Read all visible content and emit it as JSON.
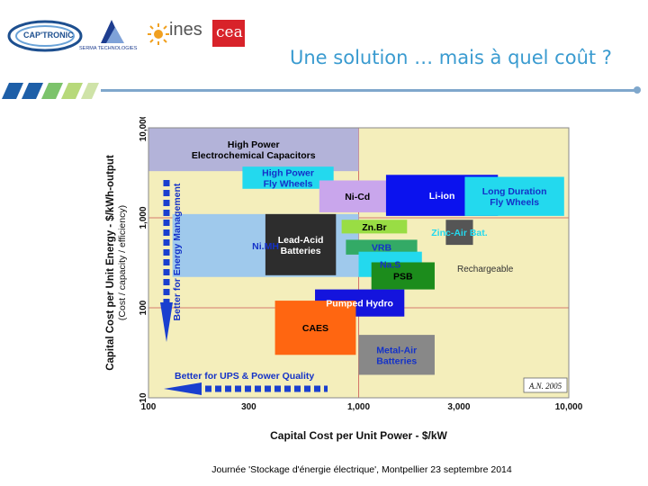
{
  "logos": {
    "captronic": "CAP'TRONIC",
    "serma": "SERMA TECHNOLOGIES",
    "ines": "ines",
    "cea": "cea"
  },
  "slide": {
    "title": "Une solution … mais à quel coût ?",
    "footer": "Journée 'Stockage d'énergie électrique', Montpellier  23 septembre  2014"
  },
  "colors": {
    "title": "#3a9bd0",
    "plot_background": "#f4eebb",
    "grid": "#cc5555",
    "arrow": "#1a3fcf"
  },
  "chart_data": {
    "type": "area",
    "xlabel": "Capital Cost per Unit Power   -   $/kW",
    "ylabel": "Capital Cost per Unit Energy - $/kWh-output",
    "ylabel_sub": "(Cost / capacity / efficiency)",
    "x_scale": "log",
    "y_scale": "log",
    "xlim": [
      100,
      10000
    ],
    "ylim": [
      10,
      10000
    ],
    "x_ticks": [
      "100",
      "300",
      "1,000",
      "3,000",
      "10,000"
    ],
    "y_ticks": [
      "10",
      "100",
      "1,000",
      "10,000"
    ],
    "grid": true,
    "credit": "A.N. 2005",
    "annotations": {
      "ups": "Better for UPS & Power Quality",
      "energy_mgmt": "Better for Energy Management",
      "rechargeable": "Rechargeable"
    },
    "regions": [
      {
        "label": "High Power Electrochemical Capacitors",
        "x": [
          100,
          1000
        ],
        "y": [
          3300,
          10000
        ],
        "color": "#b3b3d9",
        "text_color": "#000000"
      },
      {
        "label": "High Power Fly Wheels",
        "x": [
          280,
          760
        ],
        "y": [
          2100,
          3700
        ],
        "color": "#23d9ee",
        "text_color": "#1432c8"
      },
      {
        "label": "Ni-Cd",
        "x": [
          650,
          1500
        ],
        "y": [
          1150,
          2600
        ],
        "color": "#c9a6ec",
        "text_color": "#000000"
      },
      {
        "label": "Li-ion",
        "x": [
          1350,
          4600
        ],
        "y": [
          1050,
          3000
        ],
        "color": "#0b12ee",
        "text_color": "#ffffff"
      },
      {
        "label": "Long Duration Fly Wheels",
        "x": [
          3200,
          9500
        ],
        "y": [
          1050,
          2850
        ],
        "color": "#23d9ee",
        "text_color": "#1432c8"
      },
      {
        "label": "Ni.MH",
        "x": [
          130,
          1000
        ],
        "y": [
          220,
          1100
        ],
        "color": "#9fc9ec",
        "text_color": "#1432c8"
      },
      {
        "label": "Lead-Acid Batteries",
        "x": [
          360,
          780
        ],
        "y": [
          230,
          1100
        ],
        "color": "#2d2d2d",
        "text_color": "#ffffff"
      },
      {
        "label": "Zn.Br",
        "x": [
          830,
          1700
        ],
        "y": [
          670,
          950
        ],
        "color": "#99dd44",
        "text_color": "#000000"
      },
      {
        "label": "Zinc-Air Bat.",
        "x": [
          2600,
          3500
        ],
        "y": [
          500,
          950
        ],
        "color": "#555555",
        "text_color": "#23d9ee"
      },
      {
        "label": "VRB",
        "x": [
          870,
          1900
        ],
        "y": [
          390,
          570
        ],
        "color": "#33aa66",
        "text_color": "#1432c8"
      },
      {
        "label": "Na.S",
        "x": [
          1000,
          2000
        ],
        "y": [
          220,
          420
        ],
        "color": "#23d9ee",
        "text_color": "#1432c8"
      },
      {
        "label": "PSB",
        "x": [
          1150,
          2300
        ],
        "y": [
          160,
          320
        ],
        "color": "#1c8c1c",
        "text_color": "#000000"
      },
      {
        "label": "Pumped Hydro",
        "x": [
          620,
          1650
        ],
        "y": [
          80,
          160
        ],
        "color": "#1414dd",
        "text_color": "#ffffff"
      },
      {
        "label": "CAES",
        "x": [
          400,
          970
        ],
        "y": [
          30,
          120
        ],
        "color": "#ff6611",
        "text_color": "#000000"
      },
      {
        "label": "Metal-Air Batteries",
        "x": [
          1000,
          2300
        ],
        "y": [
          18,
          50
        ],
        "color": "#888888",
        "text_color": "#1432c8"
      }
    ]
  }
}
